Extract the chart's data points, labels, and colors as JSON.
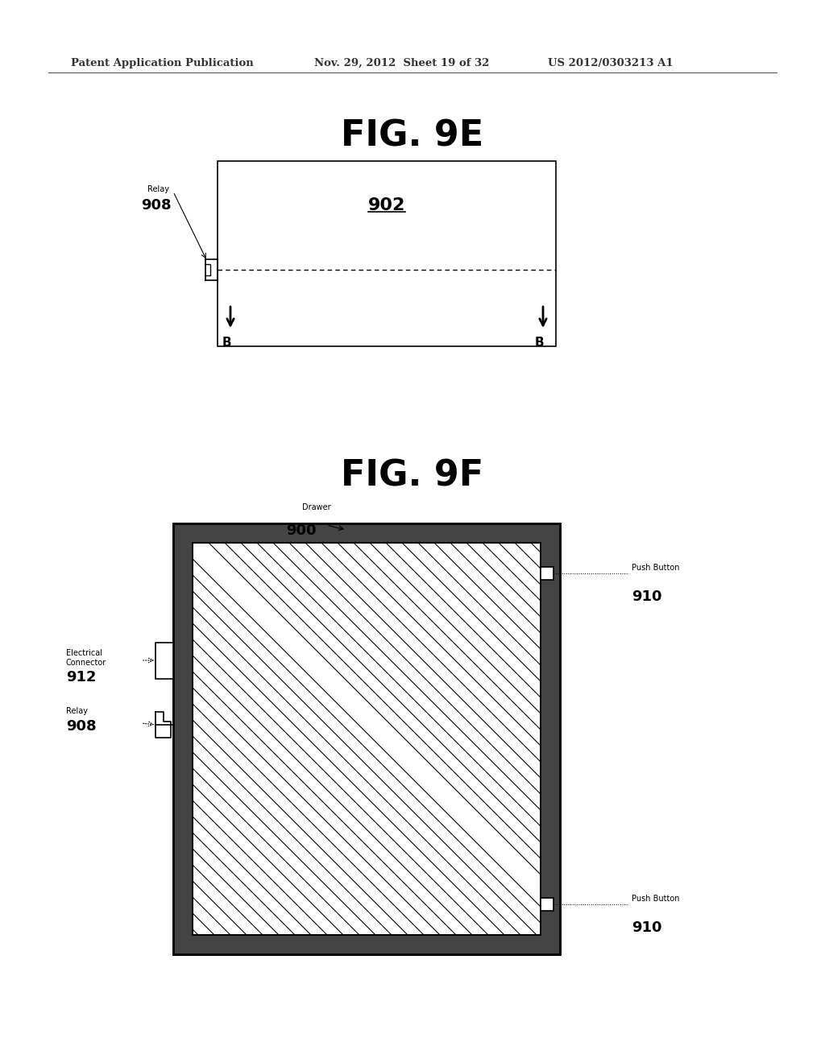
{
  "bg_color": "#ffffff",
  "header_left": "Patent Application Publication",
  "header_mid": "Nov. 29, 2012  Sheet 19 of 32",
  "header_right": "US 2012/0303213 A1",
  "fig9e_title": "FIG. 9E",
  "fig9f_title": "FIG. 9F",
  "fig9e_label_902": "902",
  "fig9e_label_908": "908",
  "fig9e_relay_label": "Relay",
  "fig9e_B_label": "B",
  "fig9f_label_900": "900",
  "fig9f_label_908": "908",
  "fig9f_label_910": "910",
  "fig9f_label_912": "912",
  "fig9f_drawer_label": "Drawer",
  "fig9f_relay_label": "Relay",
  "fig9f_electrical_label": "Electrical\nConnector",
  "fig9f_pushbutton_label": "Push Button"
}
